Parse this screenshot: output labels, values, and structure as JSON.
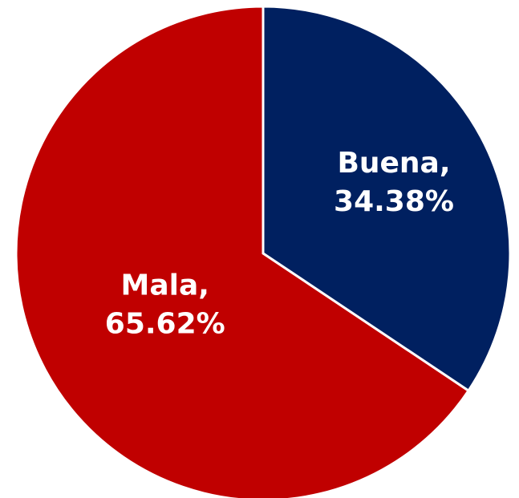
{
  "chart_data": {
    "type": "pie",
    "categories": [
      "Buena",
      "Mala"
    ],
    "values": [
      34.38,
      65.62
    ],
    "value_labels": [
      "34.38%",
      "65.62%"
    ],
    "label_separator": ",",
    "colors": [
      "#002060",
      "#c00000"
    ]
  }
}
